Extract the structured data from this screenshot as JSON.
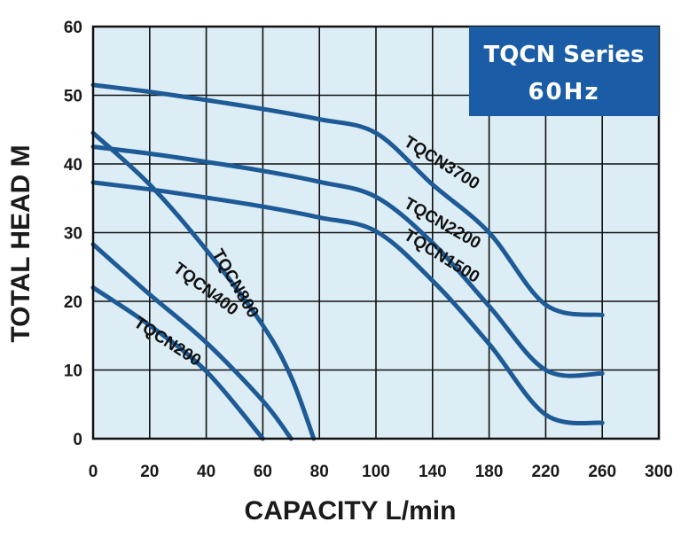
{
  "chart_data": {
    "type": "line",
    "title": "TQCN Series",
    "subtitle": "60Hz",
    "xlabel": "CAPACITY L/min",
    "ylabel": "TOTAL HEAD M",
    "x_ticks": [
      "0",
      "20",
      "40",
      "60",
      "80",
      "100",
      "140",
      "180",
      "220",
      "260",
      "300"
    ],
    "y_ticks": [
      "0",
      "10",
      "20",
      "30",
      "40",
      "50",
      "60"
    ],
    "ylim": [
      0,
      60
    ],
    "grid": true,
    "colors": {
      "plot_bg": "#dcedf5",
      "grid": "#111111",
      "curve": "#1e5a96",
      "badge": "#1a5da6"
    },
    "series": [
      {
        "name": "TQCN3700",
        "points": [
          [
            0,
            51.5
          ],
          [
            20,
            50.5
          ],
          [
            40,
            49.3
          ],
          [
            60,
            48
          ],
          [
            80,
            46.5
          ],
          [
            100,
            44.5
          ],
          [
            140,
            37
          ],
          [
            180,
            30
          ],
          [
            220,
            19.5
          ],
          [
            260,
            18
          ]
        ]
      },
      {
        "name": "TQCN2200",
        "points": [
          [
            0,
            42.5
          ],
          [
            20,
            41.5
          ],
          [
            40,
            40.3
          ],
          [
            60,
            39
          ],
          [
            80,
            37.4
          ],
          [
            100,
            35.2
          ],
          [
            140,
            28.5
          ],
          [
            180,
            19.3
          ],
          [
            220,
            10
          ],
          [
            260,
            9.5
          ]
        ]
      },
      {
        "name": "TQCN1500",
        "points": [
          [
            0,
            37.3
          ],
          [
            20,
            36.3
          ],
          [
            40,
            35.1
          ],
          [
            60,
            33.8
          ],
          [
            80,
            32.2
          ],
          [
            100,
            30.2
          ],
          [
            140,
            23
          ],
          [
            180,
            13.8
          ],
          [
            220,
            3.5
          ],
          [
            260,
            2.3
          ]
        ]
      },
      {
        "name": "TQCN800",
        "points": [
          [
            0,
            44.5
          ],
          [
            20,
            37
          ],
          [
            40,
            27.5
          ],
          [
            60,
            16.5
          ],
          [
            70,
            9
          ],
          [
            78,
            0
          ]
        ]
      },
      {
        "name": "TQCN400",
        "points": [
          [
            0,
            28.3
          ],
          [
            20,
            21
          ],
          [
            40,
            14
          ],
          [
            60,
            5.5
          ],
          [
            70,
            0
          ]
        ]
      },
      {
        "name": "TQCN200",
        "points": [
          [
            0,
            22
          ],
          [
            20,
            16.5
          ],
          [
            40,
            9.8
          ],
          [
            60,
            0
          ]
        ]
      }
    ]
  }
}
